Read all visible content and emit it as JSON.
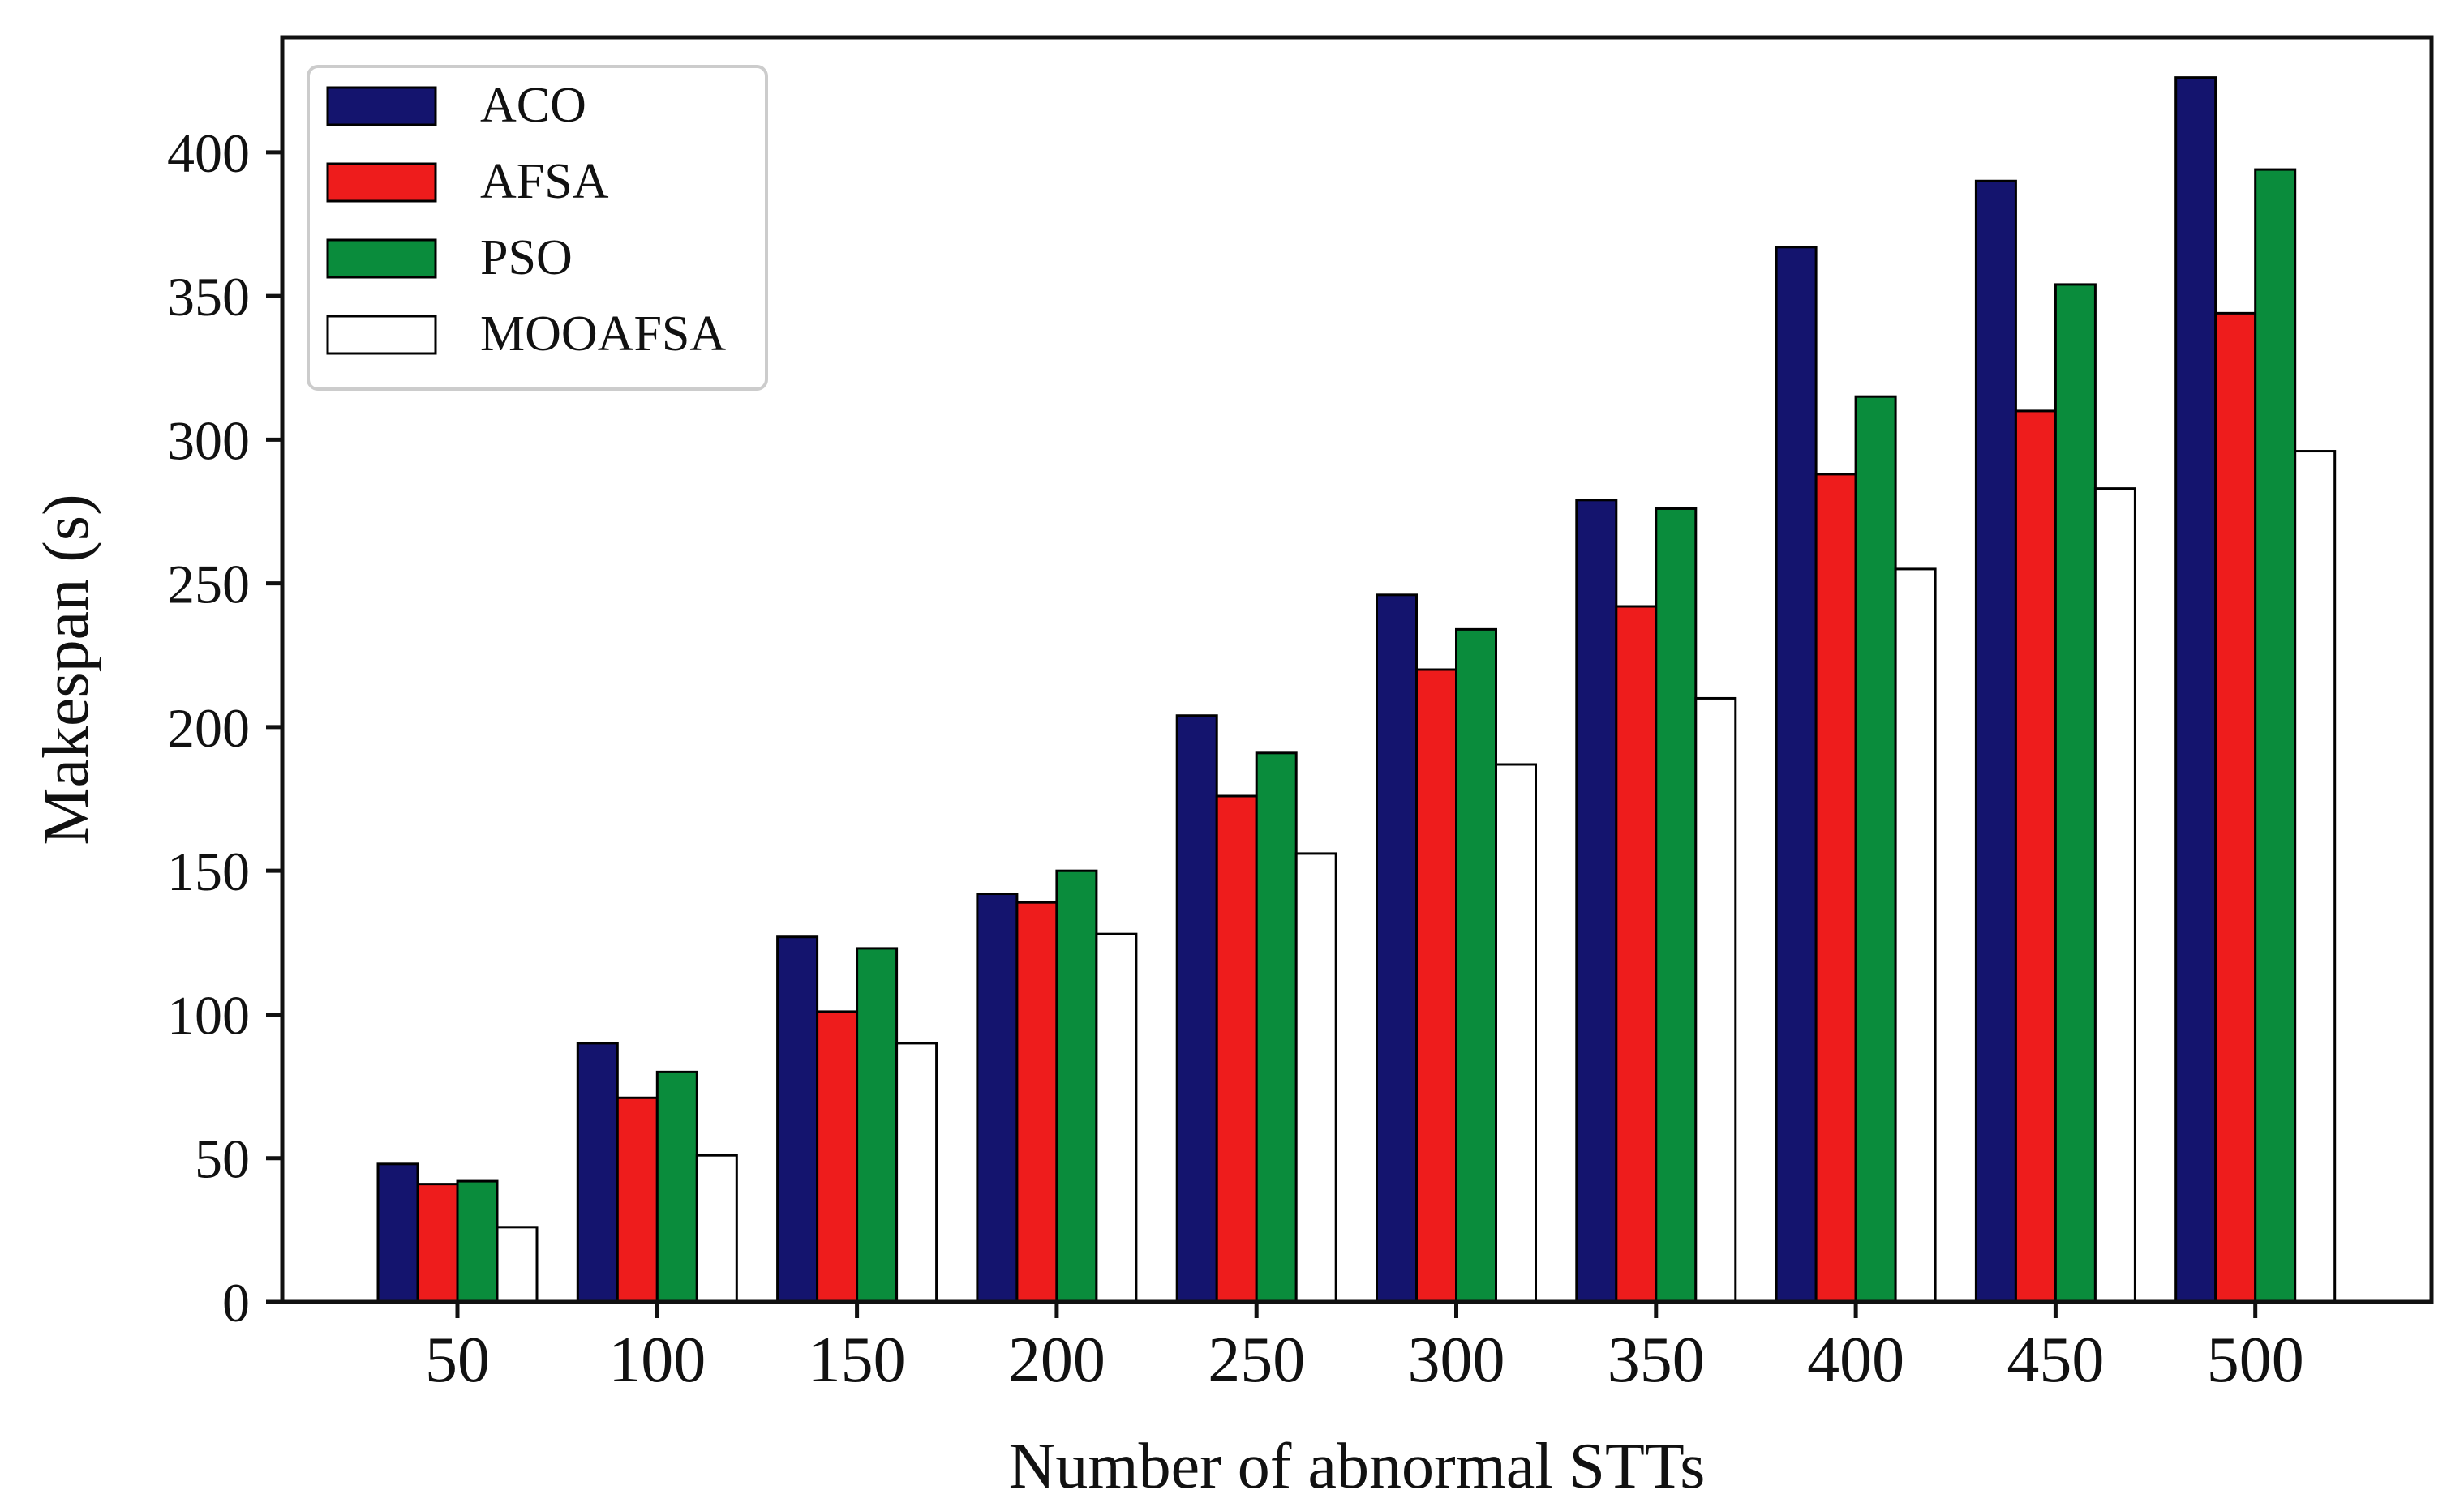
{
  "chart_data": {
    "type": "bar",
    "title": "",
    "xlabel": "Number of abnormal STTs",
    "ylabel": "Makespan (s)",
    "ylim": [
      0,
      440
    ],
    "yticks": [
      0,
      50,
      100,
      150,
      200,
      250,
      300,
      350,
      400
    ],
    "grid": false,
    "legend_position": "top-left",
    "categories": [
      "50",
      "100",
      "150",
      "200",
      "250",
      "300",
      "350",
      "400",
      "450",
      "500"
    ],
    "series": [
      {
        "name": "ACO",
        "color": "#14146e",
        "values": [
          48,
          90,
          127,
          142,
          204,
          246,
          279,
          367,
          390,
          426
        ]
      },
      {
        "name": "AFSA",
        "color": "#ee1c1c",
        "values": [
          41,
          71,
          101,
          139,
          176,
          220,
          242,
          288,
          310,
          344
        ]
      },
      {
        "name": "PSO",
        "color": "#0a8c3c",
        "values": [
          42,
          80,
          123,
          150,
          191,
          234,
          276,
          315,
          354,
          394
        ]
      },
      {
        "name": "MOOAFSA",
        "color": "#ffffff",
        "values": [
          26,
          51,
          90,
          128,
          156,
          187,
          210,
          255,
          283,
          296
        ]
      }
    ]
  }
}
